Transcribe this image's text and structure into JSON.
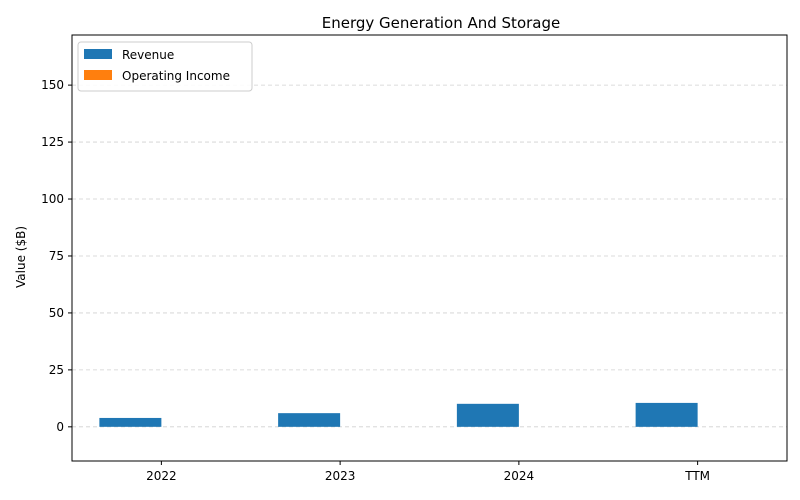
{
  "chart_data": {
    "type": "bar",
    "title": "Energy Generation And Storage",
    "xlabel": "",
    "ylabel": "Value ($B)",
    "categories": [
      "2022",
      "2023",
      "2024",
      "TTM"
    ],
    "series": [
      {
        "name": "Revenue",
        "values": [
          3.9,
          6.0,
          10.1,
          10.5
        ],
        "color": "#1f77b4"
      },
      {
        "name": "Operating Income",
        "values": [
          0,
          0,
          0,
          0
        ],
        "color": "#ff7f0e"
      }
    ],
    "ylim": [
      -15,
      172
    ],
    "yticks": [
      0,
      25,
      50,
      75,
      100,
      125,
      150
    ],
    "grid": true,
    "legend_position": "top-left"
  }
}
